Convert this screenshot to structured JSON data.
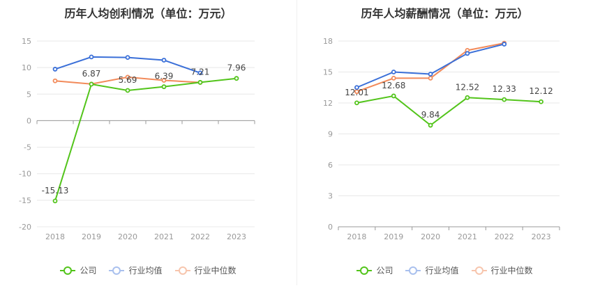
{
  "colors": {
    "company": "#52c41a",
    "industry_avg": "#3a6fd8",
    "industry_median": "#f28a5a"
  },
  "charts": [
    {
      "title": "历年人均创利情况（单位：万元）",
      "legend": {
        "company": "公司",
        "industry_avg": "行业均值",
        "industry_median": "行业中位数"
      }
    },
    {
      "title": "历年人均薪酬情况（单位：万元）",
      "legend": {
        "company": "公司",
        "industry_avg": "行业均值",
        "industry_median": "行业中位数"
      }
    }
  ],
  "chart_data": [
    {
      "type": "line",
      "title": "历年人均创利情况（单位：万元）",
      "categories": [
        "2018",
        "2019",
        "2020",
        "2021",
        "2022",
        "2023"
      ],
      "ylim": [
        -20,
        15
      ],
      "yticks": [
        15,
        10,
        5,
        0,
        -5,
        -10,
        -15,
        -20
      ],
      "grid": true,
      "legend_position": "bottom",
      "series": [
        {
          "key": "company",
          "name": "公司",
          "values": [
            -15.13,
            6.87,
            5.69,
            6.39,
            7.21,
            7.96
          ],
          "labels": [
            "-15.13",
            "6.87",
            "5.69",
            "6.39",
            "7.21",
            "7.96"
          ]
        },
        {
          "key": "industry_avg",
          "name": "行业均值",
          "values": [
            9.7,
            12.0,
            11.9,
            11.4,
            9.0,
            null
          ]
        },
        {
          "key": "industry_median",
          "name": "行业中位数",
          "values": [
            7.5,
            6.9,
            8.2,
            7.6,
            7.2,
            null
          ]
        }
      ]
    },
    {
      "type": "line",
      "title": "历年人均薪酬情况（单位：万元）",
      "categories": [
        "2018",
        "2019",
        "2020",
        "2021",
        "2022",
        "2023"
      ],
      "ylim": [
        0,
        18
      ],
      "yticks": [
        18,
        15,
        12,
        9,
        6,
        3,
        0
      ],
      "grid": true,
      "legend_position": "bottom",
      "series": [
        {
          "key": "company",
          "name": "公司",
          "values": [
            12.01,
            12.68,
            9.84,
            12.52,
            12.33,
            12.12
          ],
          "labels": [
            "12.01",
            "12.68",
            "9.84",
            "12.52",
            "12.33",
            "12.12"
          ]
        },
        {
          "key": "industry_avg",
          "name": "行业均值",
          "values": [
            13.5,
            15.0,
            14.8,
            16.8,
            17.7,
            null
          ]
        },
        {
          "key": "industry_median",
          "name": "行业中位数",
          "values": [
            13.1,
            14.4,
            14.4,
            17.1,
            17.8,
            null
          ]
        }
      ]
    }
  ]
}
